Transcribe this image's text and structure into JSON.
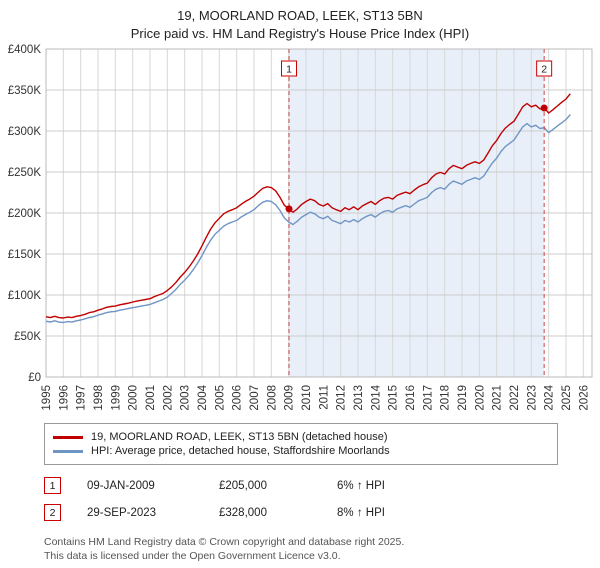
{
  "title": "19, MOORLAND ROAD, LEEK, ST13 5BN",
  "subtitle": "Price paid vs. HM Land Registry's House Price Index (HPI)",
  "legend": [
    {
      "label": "19, MOORLAND ROAD, LEEK, ST13 5BN (detached house)",
      "color": "#c00000"
    },
    {
      "label": "HPI: Average price, detached house, Staffordshire Moorlands",
      "color": "#6f95c5"
    }
  ],
  "annotations": [
    {
      "num": "1",
      "date": "09-JAN-2009",
      "price": "£205,000",
      "hpi": "6% ↑ HPI"
    },
    {
      "num": "2",
      "date": "29-SEP-2023",
      "price": "£328,000",
      "hpi": "8% ↑ HPI"
    }
  ],
  "footer_line1": "Contains HM Land Registry data © Crown copyright and database right 2025.",
  "footer_line2": "This data is licensed under the Open Government Licence v3.0.",
  "chart_data": {
    "type": "line",
    "title": "19, MOORLAND ROAD, LEEK, ST13 5BN",
    "subtitle": "Price paid vs. HM Land Registry's House Price Index (HPI)",
    "unit": "GBP thousands",
    "x_start": 1995.0,
    "x_step": 0.25,
    "x_range": [
      1995,
      2026.5
    ],
    "ylim": [
      0,
      400
    ],
    "y_ticks": [
      "£0",
      "£50K",
      "£100K",
      "£150K",
      "£200K",
      "£250K",
      "£300K",
      "£350K",
      "£400K"
    ],
    "y_tick_values": [
      0,
      50,
      100,
      150,
      200,
      250,
      300,
      350,
      400
    ],
    "x_tick_years": [
      1995,
      1996,
      1997,
      1998,
      1999,
      2000,
      2001,
      2002,
      2003,
      2004,
      2005,
      2006,
      2007,
      2008,
      2009,
      2010,
      2011,
      2012,
      2013,
      2014,
      2015,
      2016,
      2017,
      2018,
      2019,
      2020,
      2021,
      2022,
      2023,
      2024,
      2025,
      2026
    ],
    "grid": true,
    "legend_position": "bottom",
    "series": [
      {
        "name": "19, MOORLAND ROAD, LEEK, ST13 5BN (detached house)",
        "color": "#c00000",
        "values": [
          73.5,
          72.5,
          74,
          72.5,
          72,
          73,
          72.5,
          74,
          75,
          76.5,
          78.5,
          79.5,
          81.5,
          83,
          85,
          86,
          86.5,
          88,
          89,
          90,
          91.5,
          92.5,
          93.5,
          94.5,
          95.5,
          98,
          100,
          102,
          105.5,
          110,
          115.5,
          122,
          127.5,
          134,
          141.5,
          150,
          160,
          170.5,
          180.5,
          188,
          193.5,
          199,
          202,
          204,
          206.5,
          210.5,
          214,
          217,
          220.5,
          225.5,
          230,
          232,
          231,
          227,
          219,
          209.5,
          205,
          201,
          205,
          210.5,
          214,
          217,
          215,
          210.5,
          208.5,
          211.5,
          206.5,
          204,
          202,
          206.5,
          204,
          207.5,
          204,
          208.5,
          211.5,
          214,
          210.5,
          215,
          218,
          219,
          217,
          221.5,
          223.5,
          225.5,
          223.5,
          228,
          232,
          234.5,
          236.5,
          243,
          247.5,
          249.5,
          247.5,
          254,
          258,
          256,
          254,
          258,
          260.5,
          262.5,
          260.5,
          264.5,
          273,
          282,
          288.5,
          297,
          303.5,
          308,
          312,
          320.5,
          329.5,
          333.5,
          329.5,
          331.5,
          327,
          328,
          322,
          326,
          330.5,
          335,
          339,
          345.5
        ]
      },
      {
        "name": "HPI: Average price, detached house, Staffordshire Moorlands",
        "color": "#6f95c5",
        "values": [
          68,
          67,
          68.5,
          67,
          66.5,
          67.5,
          67,
          68.5,
          69.5,
          71,
          72.5,
          73.5,
          75.5,
          77,
          78.5,
          79.5,
          80,
          81.5,
          82.5,
          83.5,
          84.5,
          85.5,
          86.5,
          87.5,
          88.5,
          90.5,
          92.5,
          94.5,
          97.5,
          102,
          107,
          113,
          118,
          124,
          131,
          139,
          148,
          158,
          167,
          174,
          179,
          184,
          187,
          189,
          191,
          195,
          198,
          201,
          204,
          209,
          213,
          215,
          214,
          210,
          203,
          194,
          189,
          186,
          190,
          195,
          198,
          201,
          199,
          195,
          193,
          196,
          191,
          189,
          187,
          191,
          189,
          192,
          189,
          193,
          196,
          198,
          195,
          199,
          202,
          203,
          201,
          205,
          207,
          209,
          207,
          211,
          215,
          217,
          219,
          225,
          229,
          231,
          229,
          235,
          239,
          237,
          235,
          239,
          241,
          243,
          241,
          245,
          253,
          261,
          267,
          275,
          281,
          285,
          289,
          297,
          305,
          309,
          305,
          307,
          303,
          304,
          298,
          302,
          306,
          310,
          314,
          320
        ]
      }
    ],
    "sales": [
      {
        "x": 2009.02,
        "y": 205,
        "label": "1",
        "date": "09-JAN-2009",
        "price": "£205,000",
        "vs_hpi": "6% ↑ HPI"
      },
      {
        "x": 2023.74,
        "y": 328,
        "label": "2",
        "date": "29-SEP-2023",
        "price": "£328,000",
        "vs_hpi": "8% ↑ HPI"
      }
    ],
    "shaded_region": {
      "from": 2009.02,
      "to": 2023.74,
      "color": "#e9eff9"
    }
  }
}
